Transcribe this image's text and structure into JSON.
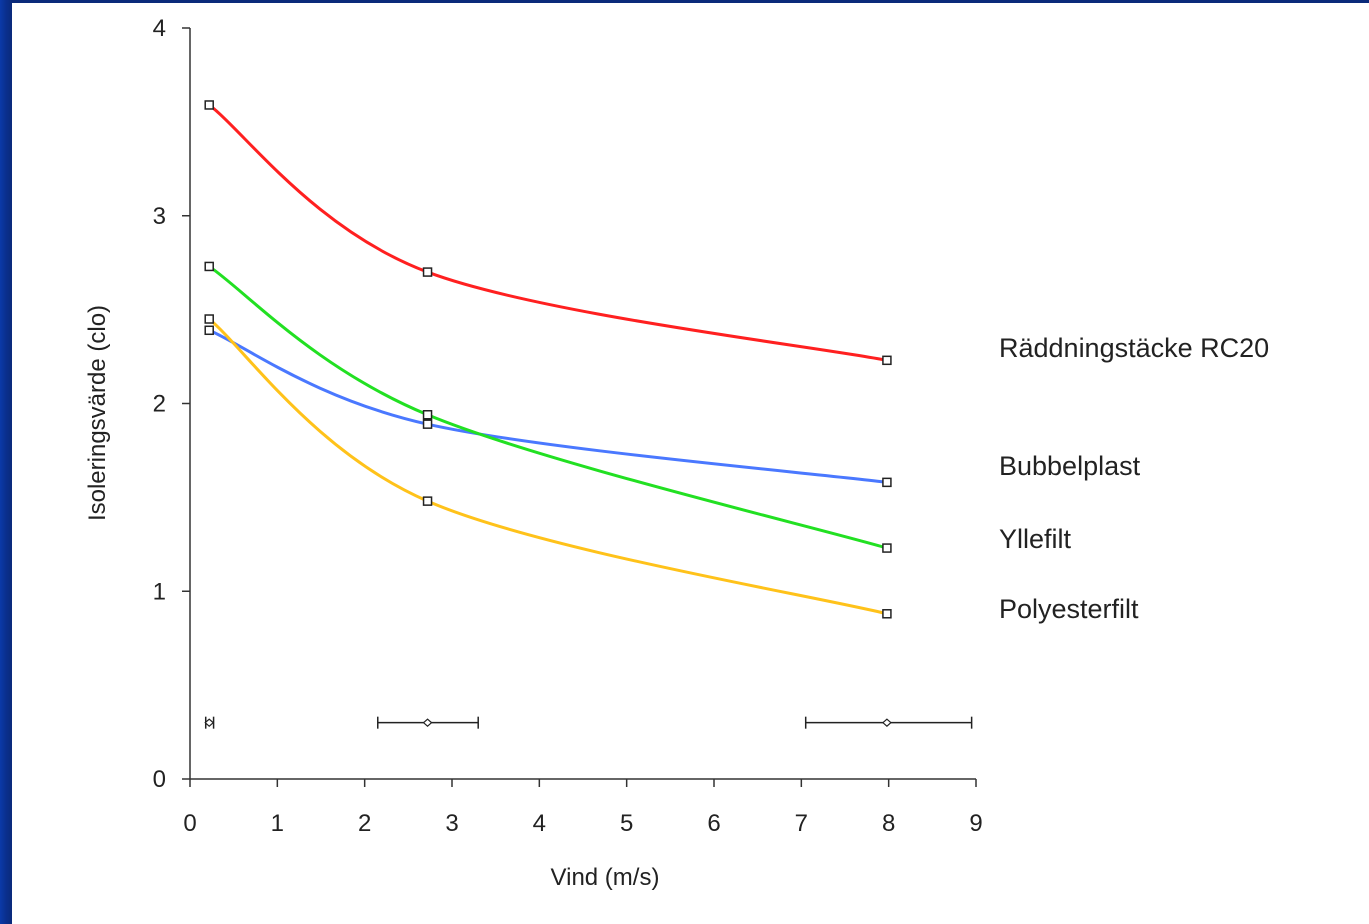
{
  "chart_data": {
    "type": "line",
    "title": "",
    "xlabel": "Vind (m/s)",
    "ylabel": "Isoleringsvärde  (clo)",
    "xlim": [
      0,
      9
    ],
    "ylim": [
      0,
      4
    ],
    "x_ticks": [
      "0",
      "1",
      "2",
      "3",
      "4",
      "5",
      "6",
      "7",
      "8",
      "9"
    ],
    "y_ticks": [
      "0",
      "1",
      "2",
      "3",
      "4"
    ],
    "grid": false,
    "series": [
      {
        "name": "Räddningstäcke RC20",
        "color": "#ff2020",
        "x": [
          0.22,
          2.72,
          7.98
        ],
        "y": [
          3.59,
          2.7,
          2.23
        ]
      },
      {
        "name": "Bubbelplast",
        "color": "#4a78ff",
        "x": [
          0.22,
          2.72,
          7.98
        ],
        "y": [
          2.39,
          1.89,
          1.58
        ]
      },
      {
        "name": "Yllefilt",
        "color": "#22e022",
        "x": [
          0.22,
          2.72,
          7.98
        ],
        "y": [
          2.73,
          1.94,
          1.23
        ]
      },
      {
        "name": "Polyesterfilt",
        "color": "#ffc21a",
        "x": [
          0.22,
          2.72,
          7.98
        ],
        "y": [
          2.45,
          1.48,
          0.88
        ]
      }
    ],
    "wind_error_bars": [
      {
        "x": 0.22,
        "y": 0.3,
        "xmin": 0.18,
        "xmax": 0.27
      },
      {
        "x": 2.72,
        "y": 0.3,
        "xmin": 2.15,
        "xmax": 3.3
      },
      {
        "x": 7.98,
        "y": 0.3,
        "xmin": 7.05,
        "xmax": 8.95
      }
    ]
  }
}
